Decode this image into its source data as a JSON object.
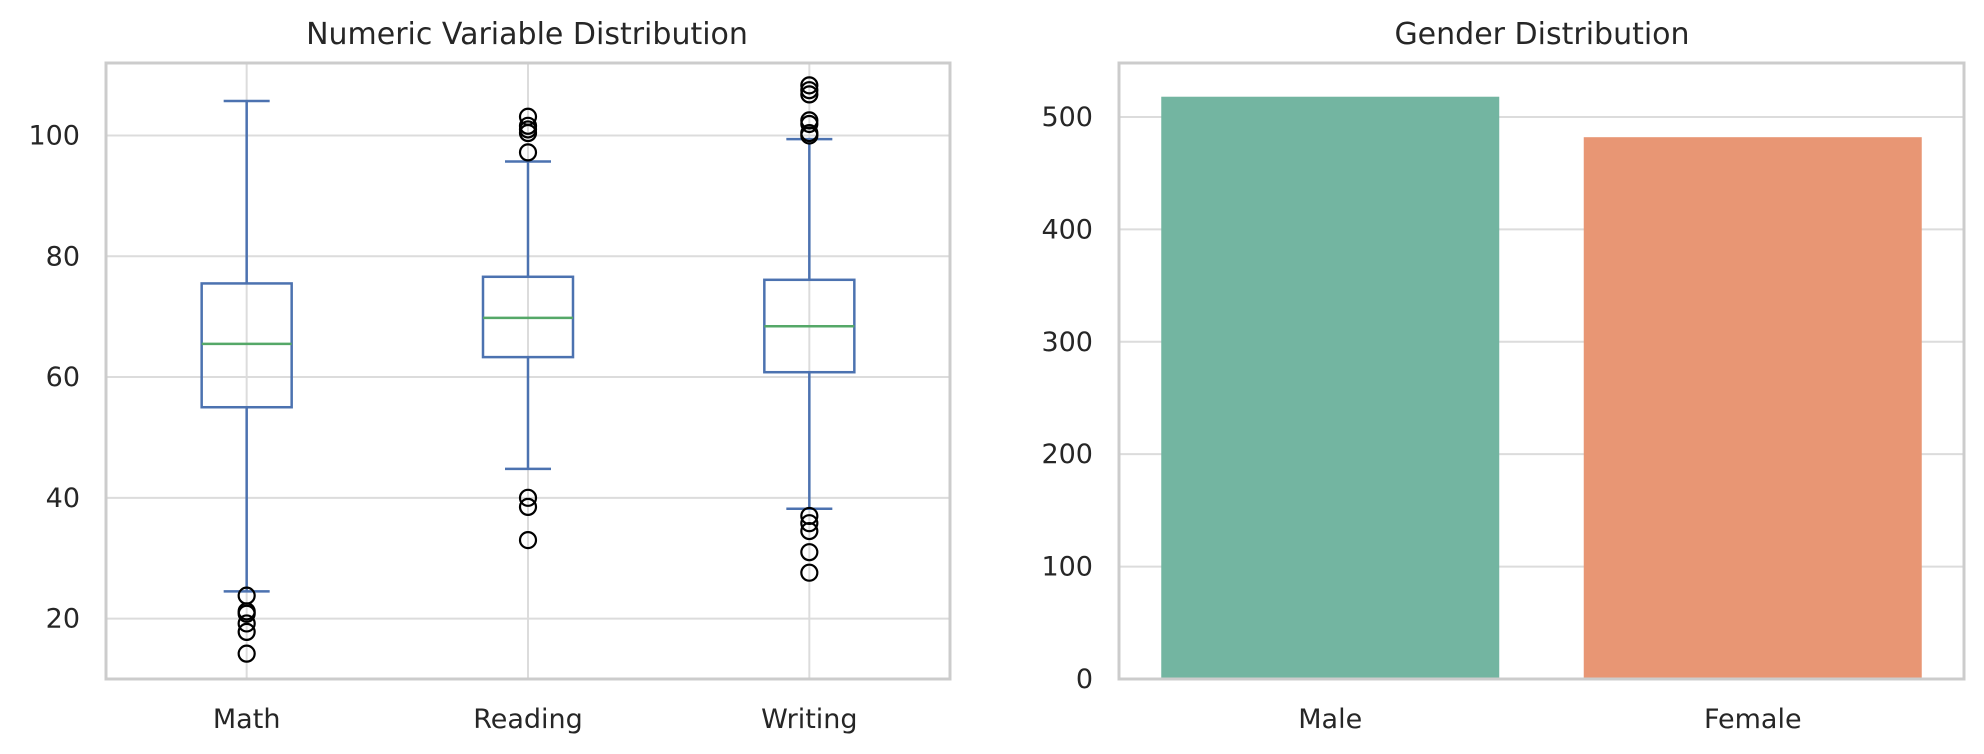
{
  "chart_data": [
    {
      "type": "box",
      "title": "Numeric Variable Distribution",
      "xlabel": "",
      "ylabel": "",
      "ylim": [
        10,
        112
      ],
      "yticks": [
        20,
        40,
        60,
        80,
        100
      ],
      "grid": true,
      "categories": [
        "Math",
        "Reading",
        "Writing"
      ],
      "boxes": [
        {
          "label": "Math",
          "whisker_low": 24.5,
          "q1": 55.0,
          "median": 65.5,
          "q3": 75.5,
          "whisker_high": 105.7,
          "fliers": [
            23.8,
            21.2,
            20.8,
            19.2,
            17.8,
            14.2
          ]
        },
        {
          "label": "Reading",
          "whisker_low": 44.8,
          "q1": 63.3,
          "median": 69.8,
          "q3": 76.6,
          "whisker_high": 95.7,
          "fliers": [
            97.2,
            100.4,
            101.0,
            101.6,
            103.1,
            40.0,
            38.5,
            33.0
          ]
        },
        {
          "label": "Writing",
          "whisker_low": 38.2,
          "q1": 60.8,
          "median": 68.4,
          "q3": 76.1,
          "whisker_high": 99.4,
          "fliers": [
            100.0,
            100.4,
            101.9,
            102.5,
            106.8,
            107.5,
            108.3,
            37.0,
            35.8,
            34.5,
            31.0,
            27.6
          ]
        }
      ]
    },
    {
      "type": "bar",
      "title": "Gender Distribution",
      "xlabel": "",
      "ylabel": "",
      "ylim": [
        0,
        548
      ],
      "yticks": [
        0,
        100,
        200,
        300,
        400,
        500
      ],
      "grid": true,
      "categories": [
        "Male",
        "Female"
      ],
      "values": [
        518,
        482
      ],
      "colors": [
        "#73b5a1",
        "#e89674"
      ]
    }
  ]
}
